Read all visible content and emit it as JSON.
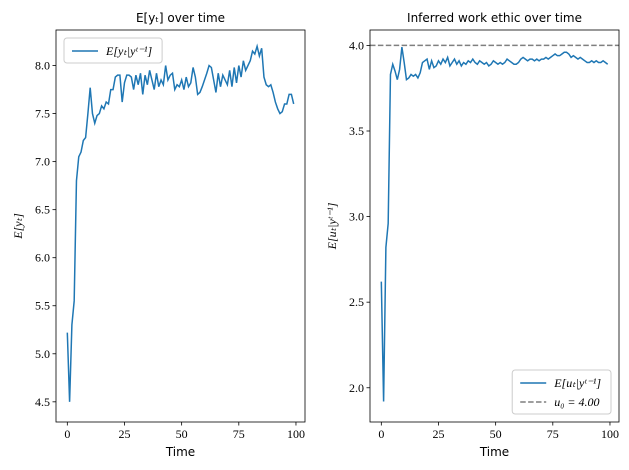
{
  "chart_data": [
    {
      "type": "line",
      "title": "E[yₜ] over time",
      "xlabel": "Time",
      "ylabel": "E[yₜ]",
      "x": [
        0,
        1,
        2,
        3,
        4,
        5,
        6,
        7,
        8,
        9,
        10,
        11,
        12,
        13,
        14,
        15,
        16,
        17,
        18,
        19,
        20,
        21,
        22,
        23,
        24,
        25,
        26,
        27,
        28,
        29,
        30,
        31,
        32,
        33,
        34,
        35,
        36,
        37,
        38,
        39,
        40,
        41,
        42,
        43,
        44,
        45,
        46,
        47,
        48,
        49,
        50,
        51,
        52,
        53,
        54,
        55,
        56,
        57,
        58,
        59,
        60,
        61,
        62,
        63,
        64,
        65,
        66,
        67,
        68,
        69,
        70,
        71,
        72,
        73,
        74,
        75,
        76,
        77,
        78,
        79,
        80,
        81,
        82,
        83,
        84,
        85,
        86,
        87,
        88,
        89,
        90,
        91,
        92,
        93,
        94,
        95,
        96,
        97,
        98,
        99
      ],
      "series": [
        {
          "name": "E[yₜ|yᵗ⁻¹]",
          "color": "#1f77b4",
          "values": [
            5.22,
            4.5,
            5.3,
            5.55,
            6.8,
            7.05,
            7.1,
            7.22,
            7.25,
            7.5,
            7.77,
            7.5,
            7.4,
            7.48,
            7.5,
            7.58,
            7.55,
            7.62,
            7.6,
            7.75,
            7.75,
            7.88,
            7.9,
            7.9,
            7.62,
            7.82,
            7.9,
            7.9,
            7.88,
            7.75,
            7.9,
            7.8,
            7.92,
            7.7,
            7.9,
            7.8,
            7.95,
            7.85,
            7.75,
            7.92,
            7.78,
            7.85,
            7.8,
            8.0,
            7.85,
            7.9,
            7.92,
            7.75,
            7.8,
            7.78,
            7.85,
            7.75,
            7.88,
            7.78,
            7.82,
            7.98,
            7.88,
            7.7,
            7.72,
            7.78,
            7.85,
            7.92,
            8.0,
            7.98,
            7.85,
            7.72,
            7.92,
            7.78,
            7.9,
            7.85,
            7.8,
            7.95,
            7.78,
            7.98,
            7.82,
            8.0,
            7.88,
            8.05,
            7.95,
            8.0,
            8.05,
            8.15,
            8.12,
            8.2,
            8.1,
            8.18,
            7.88,
            7.8,
            7.78,
            7.8,
            7.72,
            7.62,
            7.55,
            7.5,
            7.52,
            7.6,
            7.6,
            7.7,
            7.7,
            7.6
          ]
        }
      ],
      "xlim": [
        -4.95,
        103.95
      ],
      "xticks": [
        0,
        25,
        50,
        75,
        100
      ],
      "ylim": [
        4.29,
        8.37
      ],
      "yticks": [
        4.5,
        {
          "value": 5,
          "label": "5.0"
        },
        5.5,
        {
          "value": 6,
          "label": "6.0"
        },
        6.5,
        {
          "value": 7,
          "label": "7.0"
        },
        7.5,
        {
          "value": 8,
          "label": "8.0"
        }
      ],
      "legend": "upper left"
    },
    {
      "type": "line",
      "title": "Inferred work ethic over time",
      "xlabel": "Time",
      "ylabel": "E[uₜ|yᵗ⁻¹]",
      "x": [
        0,
        1,
        2,
        3,
        4,
        5,
        6,
        7,
        8,
        9,
        10,
        11,
        12,
        13,
        14,
        15,
        16,
        17,
        18,
        19,
        20,
        21,
        22,
        23,
        24,
        25,
        26,
        27,
        28,
        29,
        30,
        31,
        32,
        33,
        34,
        35,
        36,
        37,
        38,
        39,
        40,
        41,
        42,
        43,
        44,
        45,
        46,
        47,
        48,
        49,
        50,
        51,
        52,
        53,
        54,
        55,
        56,
        57,
        58,
        59,
        60,
        61,
        62,
        63,
        64,
        65,
        66,
        67,
        68,
        69,
        70,
        71,
        72,
        73,
        74,
        75,
        76,
        77,
        78,
        79,
        80,
        81,
        82,
        83,
        84,
        85,
        86,
        87,
        88,
        89,
        90,
        91,
        92,
        93,
        94,
        95,
        96,
        97,
        98,
        99
      ],
      "series": [
        {
          "name": "E[uₜ|yᵗ⁻¹]",
          "color": "#1f77b4",
          "values": [
            2.62,
            1.92,
            2.82,
            2.96,
            3.83,
            3.89,
            3.85,
            3.8,
            3.86,
            3.99,
            3.9,
            3.8,
            3.81,
            3.83,
            3.82,
            3.83,
            3.81,
            3.84,
            3.9,
            3.91,
            3.92,
            3.86,
            3.91,
            3.87,
            3.88,
            3.91,
            3.89,
            3.92,
            3.9,
            3.93,
            3.88,
            3.9,
            3.92,
            3.89,
            3.91,
            3.88,
            3.9,
            3.89,
            3.91,
            3.9,
            3.92,
            3.9,
            3.89,
            3.91,
            3.9,
            3.89,
            3.9,
            3.88,
            3.89,
            3.91,
            3.9,
            3.89,
            3.9,
            3.89,
            3.9,
            3.92,
            3.91,
            3.9,
            3.89,
            3.89,
            3.9,
            3.92,
            3.93,
            3.92,
            3.91,
            3.92,
            3.92,
            3.91,
            3.92,
            3.91,
            3.92,
            3.92,
            3.93,
            3.92,
            3.93,
            3.94,
            3.95,
            3.94,
            3.94,
            3.95,
            3.96,
            3.96,
            3.95,
            3.93,
            3.94,
            3.93,
            3.92,
            3.93,
            3.92,
            3.91,
            3.9,
            3.9,
            3.91,
            3.9,
            3.91,
            3.9,
            3.9,
            3.91,
            3.9,
            3.89
          ]
        }
      ],
      "hline": {
        "name": "u₀ = 4.00",
        "value": 4,
        "color": "#7f7f7f"
      },
      "xlim": [
        -4.95,
        103.95
      ],
      "xticks": [
        0,
        25,
        50,
        75,
        100
      ],
      "ylim": [
        1.8,
        4.09
      ],
      "yticks": [
        {
          "value": 2,
          "label": "2.0"
        },
        2.5,
        {
          "value": 3,
          "label": "3.0"
        },
        3.5,
        {
          "value": 4,
          "label": "4.0"
        }
      ],
      "legend": "lower right"
    }
  ]
}
